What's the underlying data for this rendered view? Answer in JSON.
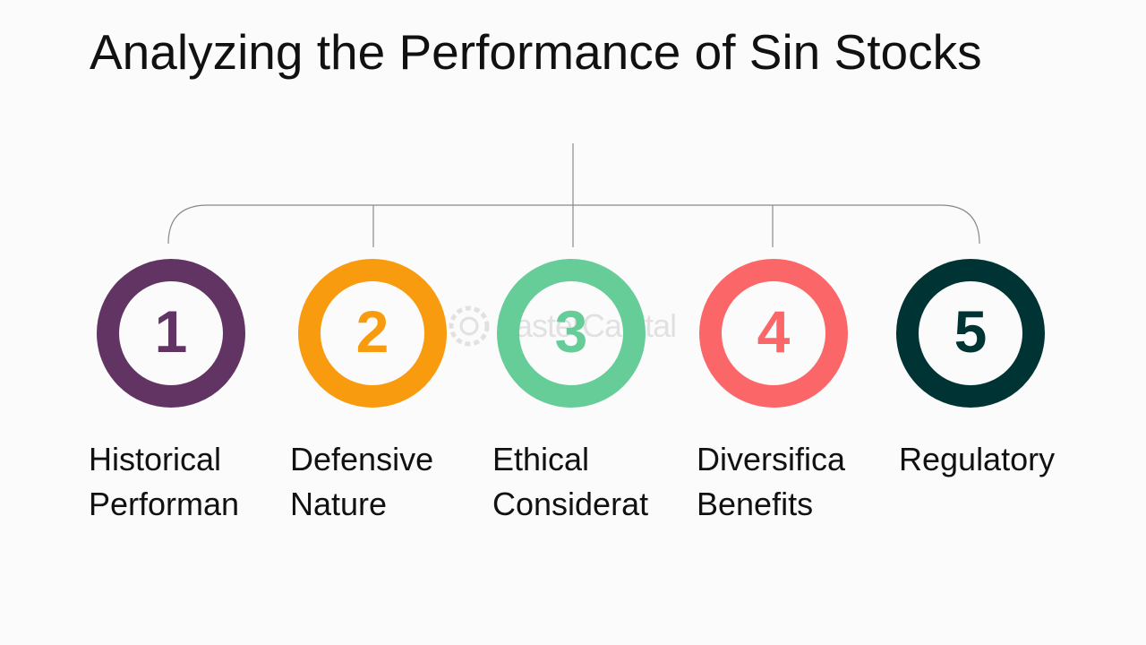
{
  "title": "Analyzing the Performance of Sin Stocks",
  "watermark": "FasterCapital",
  "colors": {
    "item1": "#613464",
    "item2": "#f89b0f",
    "item3": "#66cc98",
    "item4": "#fb6769",
    "item5": "#003333",
    "connector": "#8a8a8a"
  },
  "items": [
    {
      "number": "1",
      "label_line1": "Historical",
      "label_line2": "Performan"
    },
    {
      "number": "2",
      "label_line1": "Defensive",
      "label_line2": "Nature"
    },
    {
      "number": "3",
      "label_line1": "Ethical",
      "label_line2": "Considerat"
    },
    {
      "number": "4",
      "label_line1": "Diversifica",
      "label_line2": "Benefits"
    },
    {
      "number": "5",
      "label_line1": "Regulatory",
      "label_line2": ""
    }
  ]
}
